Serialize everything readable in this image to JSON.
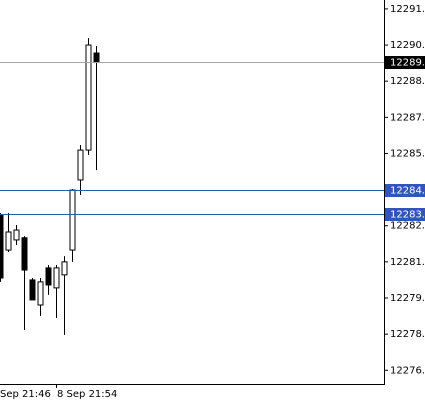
{
  "chart_data": {
    "type": "candlestick",
    "categories": [
      "Sep 21:46",
      null,
      null,
      null,
      null,
      null,
      null,
      "8 Sep 21:54",
      null,
      null,
      null,
      null,
      null
    ],
    "series": [
      {
        "open": [
          12282.95,
          12281.49,
          12281.91,
          12282.0,
          12280.25,
          12279.21,
          12280.75,
          12279.92,
          12280.46,
          12281.49,
          12284.4,
          12285.64,
          12289.67
        ],
        "high": [
          12283.03,
          12283.03,
          12282.53,
          12282.07,
          12280.33,
          12280.33,
          12280.87,
          12280.87,
          12281.24,
          12284.02,
          12285.85,
          12290.29,
          12289.96
        ],
        "low": [
          12280.17,
          12281.41,
          12281.7,
          12278.17,
          12279.42,
          12278.76,
          12279.63,
          12278.67,
          12277.97,
          12281.0,
          12283.78,
          12285.44,
          12284.81
        ],
        "close": [
          12280.33,
          12282.24,
          12282.32,
          12280.66,
          12279.42,
          12280.17,
          12280.04,
          12280.75,
          12281.0,
          12283.98,
          12285.64,
          12290.0,
          12289.29
        ],
        "up_color": "#ffffff",
        "down_color": "#000000",
        "edge_color": "#000000"
      }
    ],
    "ylim": [
      12275.93,
      12291.87
    ],
    "yticks": [
      12291.5,
      {
        "value": 12290.0,
        "label": "12290.0"
      },
      12288.5,
      {
        "value": 12287.0,
        "label": "12287.0"
      },
      12285.5,
      {
        "value": 12284.0,
        "label": "12284.0"
      },
      12282.5,
      {
        "value": 12281.0,
        "label": "12281.0"
      },
      12279.5,
      {
        "value": 12278.0,
        "label": "12278.0"
      },
      12276.5
    ],
    "levels": [
      {
        "value": 12289.3,
        "label": "12289.3",
        "color": "#a6a6a6",
        "label_color": "#000000"
      },
      {
        "value": 12284.0,
        "label": "12284.0",
        "color": "#3355bb",
        "label_color": "#3355bb"
      },
      {
        "value": 12283.0,
        "label": "12283.0",
        "color": "#3355bb",
        "label_color": "#3355bb"
      }
    ]
  }
}
